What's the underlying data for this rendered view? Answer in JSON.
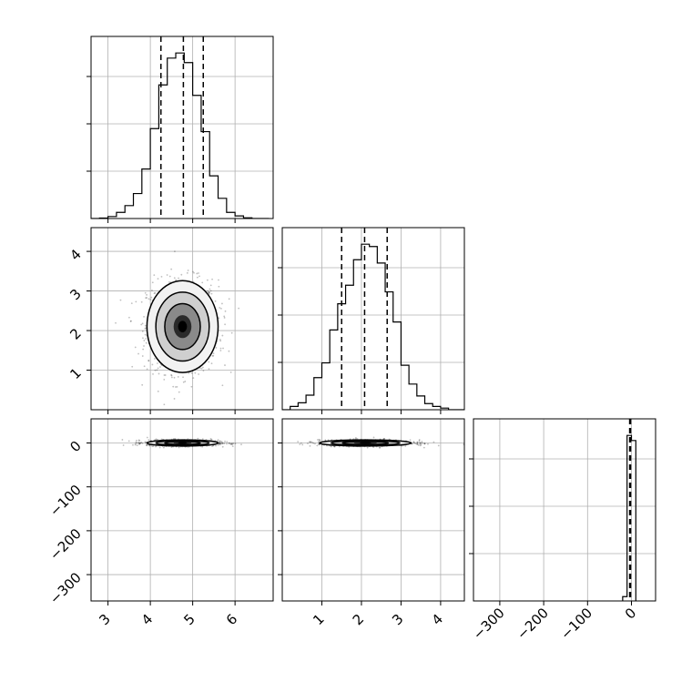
{
  "chart_data": {
    "type": "corner",
    "parameters": [
      {
        "name": "",
        "range": [
          2.6,
          6.9
        ],
        "ticks": [
          3,
          4,
          5,
          6
        ],
        "tick_labels": [
          "3",
          "4",
          "5",
          "6"
        ],
        "quantiles": [
          4.25,
          4.78,
          5.25
        ],
        "histogram": {
          "edges": [
            2.6,
            2.8,
            3.0,
            3.2,
            3.4,
            3.6,
            3.8,
            4.0,
            4.2,
            4.4,
            4.6,
            4.8,
            5.0,
            5.2,
            5.4,
            5.6,
            5.8,
            6.0,
            6.2,
            6.4,
            6.6,
            6.8
          ],
          "counts": [
            0.0,
            0.003,
            0.012,
            0.037,
            0.078,
            0.151,
            0.299,
            0.543,
            0.807,
            0.969,
            1.0,
            0.942,
            0.744,
            0.525,
            0.258,
            0.122,
            0.037,
            0.016,
            0.004,
            0.0,
            0.0
          ]
        }
      },
      {
        "name": "",
        "range": [
          0.0,
          4.6
        ],
        "ticks": [
          1,
          2,
          3,
          4
        ],
        "tick_labels": [
          "1",
          "2",
          "3",
          "4"
        ],
        "quantiles": [
          1.5,
          2.08,
          2.65
        ],
        "histogram": {
          "edges": [
            0.0,
            0.2,
            0.4,
            0.6,
            0.8,
            1.0,
            1.2,
            1.4,
            1.6,
            1.8,
            2.0,
            2.2,
            2.4,
            2.6,
            2.8,
            3.0,
            3.2,
            3.4,
            3.6,
            3.8,
            4.0,
            4.2,
            4.4,
            4.6
          ],
          "counts": [
            0.0,
            0.02,
            0.042,
            0.088,
            0.194,
            0.283,
            0.482,
            0.64,
            0.752,
            0.906,
            1.0,
            0.986,
            0.886,
            0.712,
            0.53,
            0.269,
            0.155,
            0.083,
            0.037,
            0.02,
            0.01,
            0.0,
            0.0
          ]
        }
      },
      {
        "name": "",
        "range": [
          -360,
          55
        ],
        "ticks": [
          -300,
          -200,
          -100,
          0
        ],
        "tick_labels": [
          "−300",
          "−200",
          "−100",
          "0"
        ],
        "tick_labels_diag": [
          "−300",
          "−200",
          "−100",
          "0"
        ],
        "quantiles": [
          -4,
          -3,
          -2
        ],
        "histogram": {
          "edges": [
            -20,
            -10,
            0,
            10
          ],
          "counts": [
            0.026,
            1.0,
            0.969
          ]
        }
      }
    ],
    "scatter_cov": {
      "x0_x1": {
        "mean": [
          4.76,
          2.1
        ],
        "sd": [
          0.42,
          0.58
        ]
      },
      "x0_x2": {
        "mean": [
          4.76,
          0.0
        ],
        "sd": [
          0.42,
          3.5
        ]
      },
      "x1_x2": {
        "mean": [
          2.1,
          0.0
        ],
        "sd": [
          0.58,
          3.5
        ]
      }
    },
    "grid": true,
    "legend": "none"
  }
}
